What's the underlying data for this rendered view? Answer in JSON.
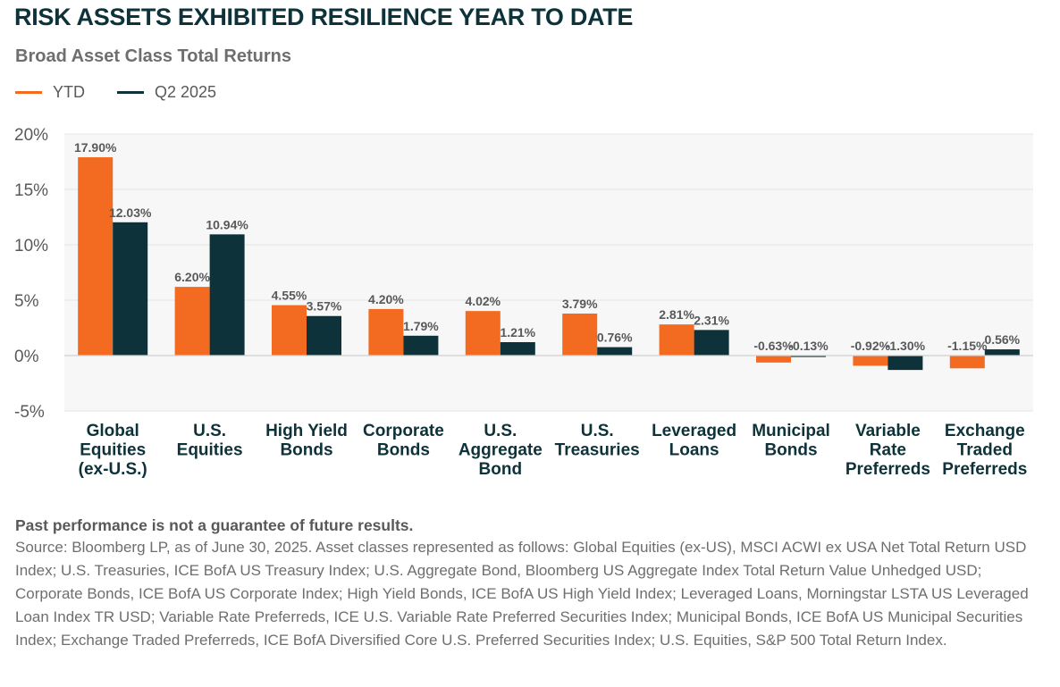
{
  "title": "RISK ASSETS EXHIBITED RESILIENCE YEAR TO DATE",
  "subtitle": "Broad Asset Class Total Returns",
  "legend": [
    {
      "label": "YTD",
      "color": "#f36b21"
    },
    {
      "label": "Q2 2025",
      "color": "#0d3239"
    }
  ],
  "chart_data": {
    "type": "bar",
    "title": "Broad Asset Class Total Returns",
    "xlabel": "",
    "ylabel": "",
    "ylim": [
      -5,
      20
    ],
    "yticks": [
      20,
      15,
      10,
      5,
      0,
      -5
    ],
    "ytick_labels": [
      "20%",
      "15%",
      "10%",
      "5%",
      "0%",
      "-5%"
    ],
    "grid": true,
    "legend_position": "top-left",
    "categories": [
      [
        "Global",
        "Equities",
        "(ex-U.S.)"
      ],
      [
        "U.S.",
        "Equities"
      ],
      [
        "High Yield",
        "Bonds"
      ],
      [
        "Corporate",
        "Bonds"
      ],
      [
        "U.S.",
        "Aggregate",
        "Bond"
      ],
      [
        "U.S.",
        "Treasuries"
      ],
      [
        "Leveraged",
        "Loans"
      ],
      [
        "Municipal",
        "Bonds"
      ],
      [
        "Variable",
        "Rate",
        "Preferreds"
      ],
      [
        "Exchange",
        "Traded",
        "Preferreds"
      ]
    ],
    "series": [
      {
        "name": "YTD",
        "color": "#f36b21",
        "values": [
          17.9,
          6.2,
          4.55,
          4.2,
          4.02,
          3.79,
          2.81,
          -0.63,
          -0.92,
          -1.15
        ],
        "labels": [
          "17.90%",
          "6.20%",
          "4.55%",
          "4.20%",
          "4.02%",
          "3.79%",
          "2.81%",
          "-0.63%",
          "-0.92%",
          "-1.15%"
        ]
      },
      {
        "name": "Q2 2025",
        "color": "#0d3239",
        "values": [
          12.03,
          10.94,
          3.57,
          1.79,
          1.21,
          0.76,
          2.31,
          -0.13,
          -1.3,
          0.56
        ],
        "labels": [
          "12.03%",
          "10.94%",
          "3.57%",
          "1.79%",
          "1.21%",
          "0.76%",
          "2.31%",
          "-0.13%",
          "-1.30%",
          "0.56%"
        ]
      }
    ]
  },
  "footnote": {
    "disclaimer": "Past performance is not a guarantee of future results.",
    "source": "Source: Bloomberg LP, as of June 30, 2025. Asset classes represented as follows: Global Equities (ex-US), MSCI ACWI ex USA Net Total Return USD Index; U.S. Treasuries, ICE BofA US Treasury Index; U.S. Aggregate Bond, Bloomberg US Aggregate Index Total Return Value Unhedged USD; Corporate Bonds, ICE BofA US Corporate Index; High Yield Bonds, ICE BofA US High Yield Index; Leveraged Loans, Morningstar LSTA US Leveraged Loan Index TR USD; Variable Rate Preferreds, ICE U.S. Variable Rate Preferred Securities Index; Municipal Bonds, ICE BofA US Municipal Securities Index; Exchange Traded Preferreds, ICE BofA Diversified Core U.S. Preferred Securities Index; U.S. Equities, S&P 500 Total Return Index."
  }
}
